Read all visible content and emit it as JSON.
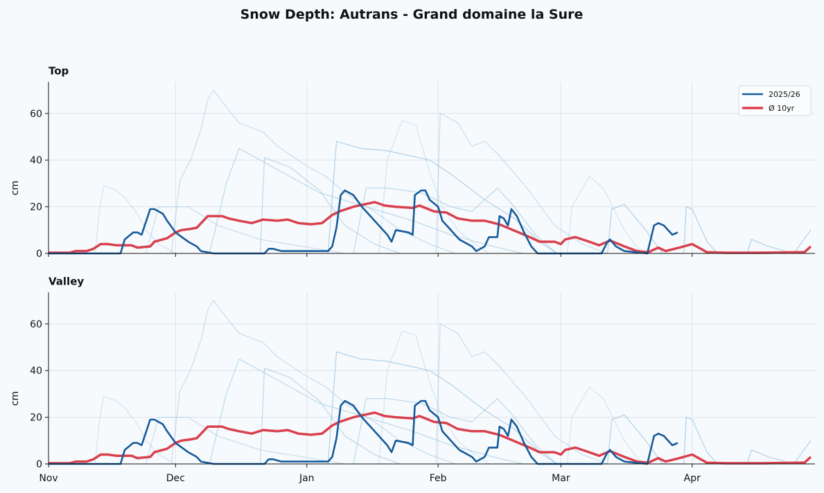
{
  "chart_data": {
    "type": "line",
    "title": "Snow Depth: Autrans - Grand domaine la Sure",
    "x_unit": "days since Nov 1",
    "xlim": [
      0,
      181
    ],
    "ylim": [
      0,
      73.5
    ],
    "ylabel": "cm",
    "yticks": [
      0,
      20,
      40,
      60
    ],
    "xticks": [
      {
        "day": 0,
        "label": "Nov"
      },
      {
        "day": 30,
        "label": "Dec"
      },
      {
        "day": 61,
        "label": "Jan"
      },
      {
        "day": 92,
        "label": "Feb"
      },
      {
        "day": 121,
        "label": "Mar"
      },
      {
        "day": 152,
        "label": "Apr"
      }
    ],
    "grid": true,
    "legend": {
      "placement": "top-right",
      "entries": [
        "2025/26",
        "Ø 10yr"
      ]
    },
    "panels": [
      {
        "title": "Top"
      },
      {
        "title": "Valley"
      }
    ],
    "colors": {
      "current": "#155a9a",
      "average": "#d9404e",
      "history": "#8fbfdf"
    },
    "series": [
      {
        "name": "2025/26",
        "points": [
          [
            0,
            0
          ],
          [
            17,
            0
          ],
          [
            18,
            6
          ],
          [
            20,
            9
          ],
          [
            21,
            9
          ],
          [
            22,
            8
          ],
          [
            24,
            19
          ],
          [
            25,
            19
          ],
          [
            27,
            17
          ],
          [
            28,
            14
          ],
          [
            30,
            9
          ],
          [
            33,
            5
          ],
          [
            35,
            3
          ],
          [
            36,
            1
          ],
          [
            39,
            0
          ],
          [
            51,
            0
          ],
          [
            52,
            2
          ],
          [
            53,
            2
          ],
          [
            55,
            1
          ],
          [
            66,
            1
          ],
          [
            67,
            3
          ],
          [
            68,
            11
          ],
          [
            69,
            25
          ],
          [
            70,
            27
          ],
          [
            72,
            25
          ],
          [
            74,
            20
          ],
          [
            77,
            14
          ],
          [
            80,
            8
          ],
          [
            81,
            5
          ],
          [
            82,
            10
          ],
          [
            85,
            9
          ],
          [
            86,
            8
          ],
          [
            86.5,
            25
          ],
          [
            88,
            27
          ],
          [
            89,
            27
          ],
          [
            90,
            23
          ],
          [
            92,
            20
          ],
          [
            93,
            14
          ],
          [
            97,
            6
          ],
          [
            100,
            3
          ],
          [
            101,
            1
          ],
          [
            103,
            3
          ],
          [
            104,
            7
          ],
          [
            106,
            7
          ],
          [
            106.5,
            16
          ],
          [
            107.5,
            15
          ],
          [
            108.5,
            12
          ],
          [
            109.3,
            19
          ],
          [
            110.6,
            16
          ],
          [
            112.3,
            9
          ],
          [
            114,
            3
          ],
          [
            115.5,
            0
          ],
          [
            130.6,
            0
          ],
          [
            132,
            5
          ],
          [
            132.6,
            6
          ],
          [
            134,
            3
          ],
          [
            136,
            1
          ],
          [
            141.4,
            0
          ],
          [
            143,
            12
          ],
          [
            144,
            13
          ],
          [
            145.3,
            12
          ],
          [
            147.3,
            8
          ],
          [
            148.6,
            9
          ]
        ]
      },
      {
        "name": "Ø 10yr",
        "points": [
          [
            0,
            0.3
          ],
          [
            5,
            0.3
          ],
          [
            6.5,
            1
          ],
          [
            9,
            1
          ],
          [
            10.6,
            2
          ],
          [
            12.3,
            4
          ],
          [
            14,
            4
          ],
          [
            16,
            3.5
          ],
          [
            19.6,
            3.5
          ],
          [
            21,
            2.5
          ],
          [
            24,
            3
          ],
          [
            25,
            5
          ],
          [
            28,
            6.5
          ],
          [
            30,
            9
          ],
          [
            31.4,
            10
          ],
          [
            33.5,
            10.5
          ],
          [
            35,
            11
          ],
          [
            37.6,
            16
          ],
          [
            39,
            16
          ],
          [
            41,
            16
          ],
          [
            42.5,
            15
          ],
          [
            45,
            14
          ],
          [
            48,
            13
          ],
          [
            50.7,
            14.5
          ],
          [
            54,
            14
          ],
          [
            56.5,
            14.5
          ],
          [
            59,
            13
          ],
          [
            62,
            12.5
          ],
          [
            64.6,
            13
          ],
          [
            67,
            16.5
          ],
          [
            68.7,
            18
          ],
          [
            72,
            20
          ],
          [
            77,
            22
          ],
          [
            79.4,
            20.5
          ],
          [
            82,
            20
          ],
          [
            86,
            19.5
          ],
          [
            87.6,
            20.5
          ],
          [
            91,
            18
          ],
          [
            94,
            17.5
          ],
          [
            96.6,
            15
          ],
          [
            100,
            14
          ],
          [
            103,
            14
          ],
          [
            106.4,
            12.5
          ],
          [
            109.7,
            10
          ],
          [
            113,
            7.5
          ],
          [
            116,
            5
          ],
          [
            119.5,
            5
          ],
          [
            121,
            4
          ],
          [
            122,
            6
          ],
          [
            124.4,
            7
          ],
          [
            127.7,
            5
          ],
          [
            130,
            3.5
          ],
          [
            132.6,
            5.5
          ],
          [
            136,
            3
          ],
          [
            139,
            1
          ],
          [
            141.6,
            0.5
          ],
          [
            144,
            2.5
          ],
          [
            145.7,
            1
          ],
          [
            149,
            2.5
          ],
          [
            152,
            4
          ],
          [
            155.5,
            0.5
          ],
          [
            160,
            0.3
          ],
          [
            168.6,
            0.3
          ],
          [
            177,
            0.5
          ],
          [
            178.5,
            0.5
          ],
          [
            180,
            3
          ]
        ]
      }
    ],
    "history": [
      [
        [
          0,
          0
        ],
        [
          11,
          0
        ],
        [
          12,
          18
        ],
        [
          13,
          29
        ],
        [
          16,
          27
        ],
        [
          18,
          24
        ],
        [
          21,
          17
        ],
        [
          23,
          10
        ],
        [
          26,
          4
        ],
        [
          30,
          0
        ]
      ],
      [
        [
          29,
          0
        ],
        [
          31,
          31
        ],
        [
          33.5,
          40
        ],
        [
          36,
          53
        ],
        [
          37.6,
          66
        ],
        [
          39,
          70
        ],
        [
          41,
          65
        ],
        [
          45,
          56
        ],
        [
          50.7,
          52
        ],
        [
          54,
          46
        ],
        [
          60.5,
          38
        ],
        [
          65.5,
          33
        ],
        [
          70,
          26
        ],
        [
          77,
          18
        ],
        [
          83,
          10
        ],
        [
          90,
          4
        ],
        [
          96,
          0
        ]
      ],
      [
        [
          50,
          0
        ],
        [
          51,
          41
        ],
        [
          57,
          37
        ],
        [
          64,
          27
        ],
        [
          70,
          12
        ],
        [
          77,
          4
        ],
        [
          83,
          0
        ]
      ],
      [
        [
          66,
          0
        ],
        [
          68,
          48
        ],
        [
          73.6,
          45
        ],
        [
          80,
          44
        ],
        [
          90,
          40
        ],
        [
          95,
          34
        ],
        [
          103,
          23
        ],
        [
          110,
          15
        ],
        [
          116,
          5
        ],
        [
          120,
          0
        ]
      ],
      [
        [
          78,
          0
        ],
        [
          80,
          40
        ],
        [
          83.5,
          57
        ],
        [
          86.7,
          55
        ],
        [
          90,
          35
        ],
        [
          93,
          20
        ],
        [
          96.6,
          10
        ],
        [
          100,
          5
        ],
        [
          104,
          0
        ]
      ],
      [
        [
          91.5,
          0
        ],
        [
          92.5,
          60
        ],
        [
          96.6,
          56
        ],
        [
          100,
          46
        ],
        [
          103,
          48
        ],
        [
          106.4,
          42
        ],
        [
          113,
          28
        ],
        [
          119.5,
          12
        ],
        [
          126,
          4
        ],
        [
          132,
          0
        ]
      ],
      [
        [
          38,
          0
        ],
        [
          42,
          30
        ],
        [
          45,
          45
        ],
        [
          50,
          40
        ],
        [
          57,
          33
        ],
        [
          64,
          26
        ],
        [
          75,
          20
        ],
        [
          86,
          14
        ],
        [
          95,
          8
        ],
        [
          105,
          3
        ],
        [
          112,
          0
        ]
      ],
      [
        [
          132,
          0
        ],
        [
          133,
          19
        ],
        [
          136,
          21
        ],
        [
          141,
          10
        ],
        [
          145,
          0
        ],
        [
          150,
          0
        ],
        [
          150.6,
          20
        ],
        [
          152,
          19
        ],
        [
          155.5,
          5
        ],
        [
          158,
          0
        ],
        [
          165,
          0
        ],
        [
          166,
          6
        ],
        [
          170,
          3
        ],
        [
          176,
          0
        ],
        [
          180,
          10
        ]
      ],
      [
        [
          122.5,
          0
        ],
        [
          123.6,
          20
        ],
        [
          127.7,
          33
        ],
        [
          131,
          28
        ],
        [
          136,
          10
        ],
        [
          140,
          0
        ]
      ],
      [
        [
          23,
          0
        ],
        [
          26,
          20
        ],
        [
          33,
          20
        ],
        [
          40,
          12
        ],
        [
          50,
          6
        ],
        [
          60,
          3
        ],
        [
          70,
          0
        ]
      ],
      [
        [
          72,
          0
        ],
        [
          75,
          28
        ],
        [
          80,
          28
        ],
        [
          88,
          26
        ],
        [
          95,
          20
        ],
        [
          100,
          18
        ],
        [
          106,
          28
        ],
        [
          110,
          20
        ],
        [
          115,
          8
        ],
        [
          120,
          0
        ]
      ]
    ]
  }
}
